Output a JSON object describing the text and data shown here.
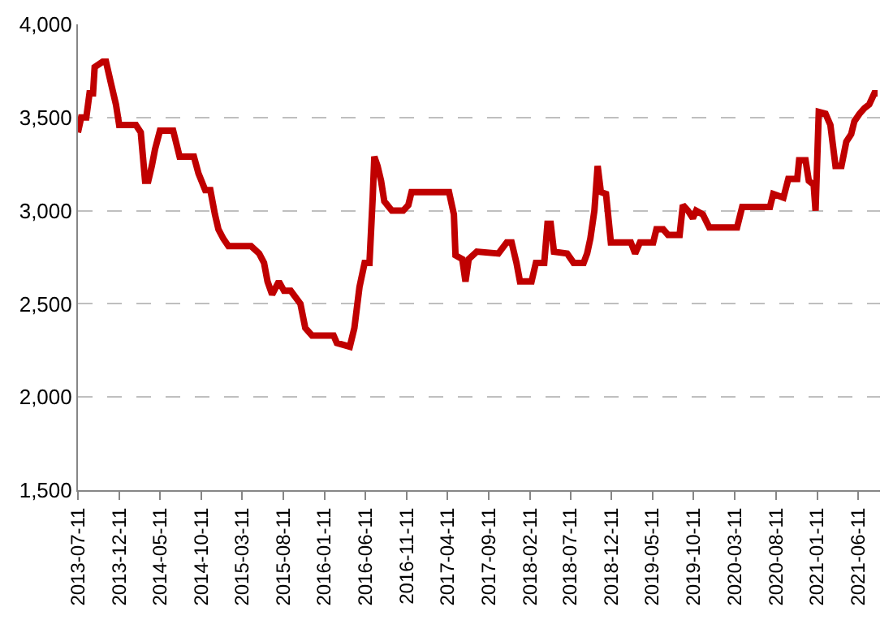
{
  "chart_data": {
    "type": "line",
    "grid": "y",
    "marker": "none",
    "line_style": "solid",
    "xlim": [
      "2013-07-11",
      "2021-09-01"
    ],
    "xticks": [
      "2013-07-11",
      "2013-12-11",
      "2014-05-11",
      "2014-10-11",
      "2015-03-11",
      "2015-08-11",
      "2016-01-11",
      "2016-06-11",
      "2016-11-11",
      "2017-04-11",
      "2017-09-11",
      "2018-02-11",
      "2018-07-11",
      "2018-12-11",
      "2019-05-11",
      "2019-10-11",
      "2020-03-11",
      "2020-08-11",
      "2021-01-11",
      "2021-06-11"
    ],
    "ylim": [
      1500,
      4000
    ],
    "yticks": [
      {
        "value": 1500,
        "label": "1,500"
      },
      {
        "value": 2000,
        "label": "2,000"
      },
      {
        "value": 2500,
        "label": "2,500"
      },
      {
        "value": 3000,
        "label": "3,000"
      },
      {
        "value": 3500,
        "label": "3,500"
      },
      {
        "value": 4000,
        "label": "4,000"
      }
    ],
    "x": [
      "2013-07-11",
      "2013-07-23",
      "2013-08-11",
      "2013-08-23",
      "2013-09-05",
      "2013-09-11",
      "2013-10-11",
      "2013-10-23",
      "2013-11-11",
      "2013-11-29",
      "2013-12-11",
      "2014-02-11",
      "2014-03-01",
      "2014-03-17",
      "2014-03-29",
      "2014-04-11",
      "2014-04-23",
      "2014-05-11",
      "2014-06-29",
      "2014-07-23",
      "2014-09-14",
      "2014-10-01",
      "2014-10-26",
      "2014-11-14",
      "2014-12-01",
      "2014-12-14",
      "2015-01-01",
      "2015-01-20",
      "2015-02-14",
      "2015-04-14",
      "2015-05-14",
      "2015-06-01",
      "2015-06-14",
      "2015-07-01",
      "2015-07-26",
      "2015-08-14",
      "2015-09-08",
      "2015-10-14",
      "2015-11-01",
      "2015-11-26",
      "2016-02-14",
      "2016-02-26",
      "2016-04-14",
      "2016-05-01",
      "2016-05-20",
      "2016-06-08",
      "2016-06-26",
      "2016-07-08",
      "2016-07-14",
      "2016-07-26",
      "2016-08-08",
      "2016-08-20",
      "2016-09-17",
      "2016-10-29",
      "2016-11-17",
      "2016-11-29",
      "2017-04-17",
      "2017-05-05",
      "2017-05-11",
      "2017-06-05",
      "2017-06-17",
      "2017-06-29",
      "2017-07-29",
      "2017-10-17",
      "2017-11-17",
      "2017-12-05",
      "2017-12-23",
      "2018-01-05",
      "2018-02-17",
      "2018-03-05",
      "2018-04-05",
      "2018-04-17",
      "2018-04-29",
      "2018-05-11",
      "2018-06-29",
      "2018-07-23",
      "2018-08-29",
      "2018-09-11",
      "2018-09-23",
      "2018-10-08",
      "2018-10-20",
      "2018-11-01",
      "2018-11-20",
      "2018-12-08",
      "2019-02-20",
      "2019-03-08",
      "2019-03-26",
      "2019-05-14",
      "2019-05-26",
      "2019-06-20",
      "2019-07-08",
      "2019-08-20",
      "2019-09-01",
      "2019-09-20",
      "2019-10-08",
      "2019-10-20",
      "2019-11-14",
      "2019-12-08",
      "2020-03-20",
      "2020-04-08",
      "2020-07-20",
      "2020-08-01",
      "2020-09-08",
      "2020-09-26",
      "2020-10-29",
      "2020-11-05",
      "2020-11-29",
      "2020-12-11",
      "2020-12-29",
      "2021-01-05",
      "2021-01-17",
      "2021-02-11",
      "2021-03-01",
      "2021-03-20",
      "2021-04-11",
      "2021-04-29",
      "2021-05-17",
      "2021-05-29",
      "2021-06-17",
      "2021-07-05",
      "2021-07-23",
      "2021-08-11",
      "2021-08-23"
    ],
    "series": [
      {
        "color": "#c00000",
        "values": [
          3420,
          3500,
          3500,
          3630,
          3630,
          3770,
          3800,
          3800,
          3680,
          3570,
          3460,
          3460,
          3420,
          3160,
          3160,
          3240,
          3330,
          3430,
          3430,
          3290,
          3290,
          3200,
          3110,
          3110,
          2980,
          2900,
          2850,
          2810,
          2810,
          2810,
          2770,
          2720,
          2620,
          2550,
          2620,
          2570,
          2570,
          2500,
          2370,
          2330,
          2330,
          2290,
          2270,
          2370,
          2590,
          2720,
          2720,
          3070,
          3290,
          3240,
          3160,
          3050,
          3000,
          3000,
          3030,
          3100,
          3100,
          2980,
          2760,
          2740,
          2620,
          2740,
          2780,
          2770,
          2830,
          2830,
          2720,
          2620,
          2620,
          2720,
          2720,
          2930,
          2930,
          2780,
          2770,
          2720,
          2720,
          2770,
          2850,
          3000,
          3240,
          3100,
          3090,
          2830,
          2830,
          2770,
          2830,
          2830,
          2900,
          2900,
          2870,
          2870,
          3030,
          3000,
          2960,
          3000,
          2980,
          2910,
          2910,
          3020,
          3020,
          3090,
          3070,
          3170,
          3170,
          3270,
          3270,
          3160,
          3140,
          3000,
          3530,
          3520,
          3460,
          3240,
          3240,
          3370,
          3410,
          3480,
          3520,
          3550,
          3570,
          3630,
          3630
        ]
      }
    ]
  }
}
